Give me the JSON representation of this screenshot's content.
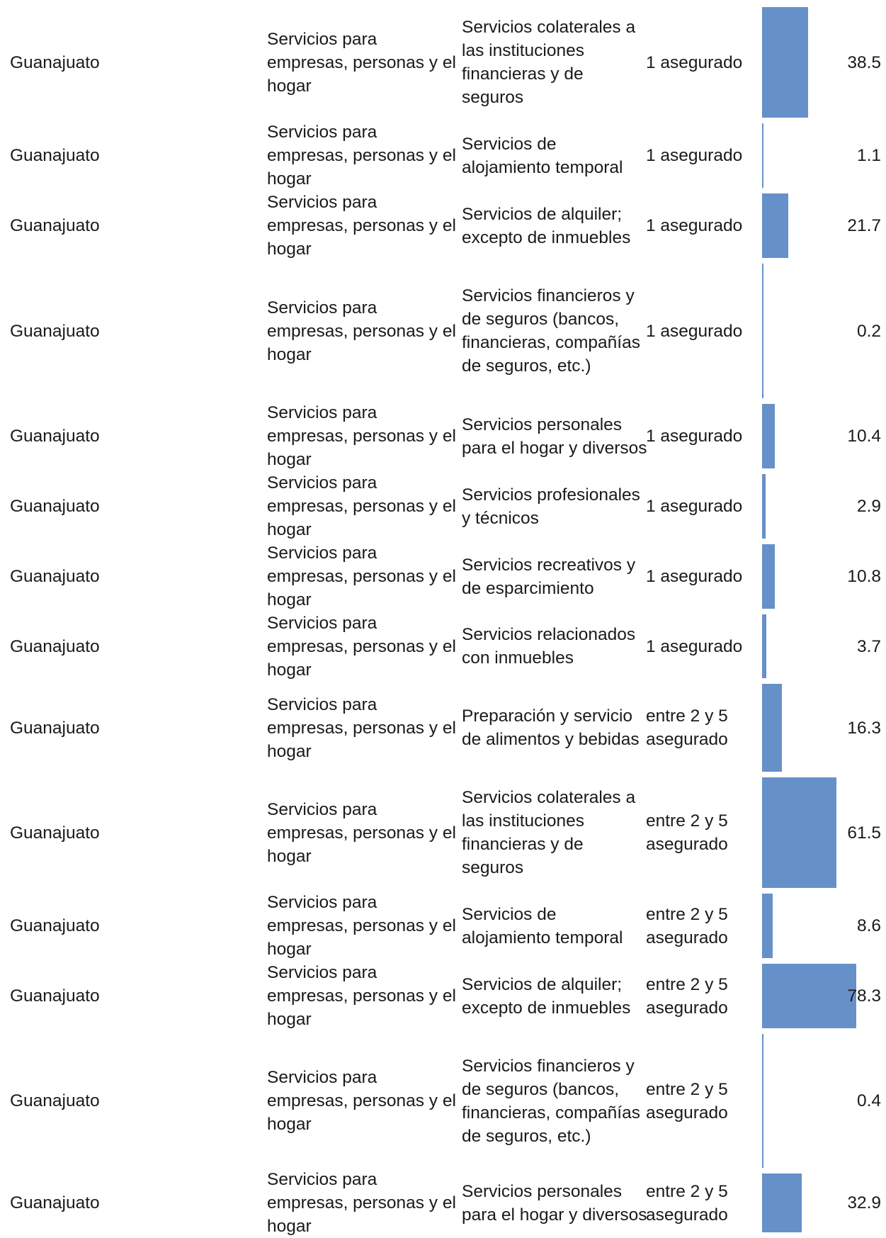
{
  "chart_data": {
    "type": "table",
    "columns": [],
    "bar_color": "#6690c8",
    "rows": [
      {
        "estado": "Guanajuato",
        "sector": "Servicios para empresas, personas y el hogar",
        "subsector": "Servicios colaterales a las instituciones financieras y de seguros",
        "tamano": "1 asegurado",
        "valor": 38.5,
        "valor_label": "38.5"
      },
      {
        "estado": "Guanajuato",
        "sector": "Servicios para empresas, personas y el hogar",
        "subsector": "Servicios de alojamiento temporal",
        "tamano": "1 asegurado",
        "valor": 1.1,
        "valor_label": "1.1"
      },
      {
        "estado": "Guanajuato",
        "sector": "Servicios para empresas, personas y el hogar",
        "subsector": "Servicios de alquiler; excepto de inmuebles",
        "tamano": "1 asegurado",
        "valor": 21.7,
        "valor_label": "21.7"
      },
      {
        "estado": "Guanajuato",
        "sector": "Servicios para empresas, personas y el hogar",
        "subsector": "Servicios financieros y de seguros (bancos, financieras, compañías de seguros, etc.)",
        "tamano": "1 asegurado",
        "valor": 0.2,
        "valor_label": "0.2"
      },
      {
        "estado": "Guanajuato",
        "sector": "Servicios para empresas, personas y el hogar",
        "subsector": "Servicios personales para el hogar y diversos",
        "tamano": "1 asegurado",
        "valor": 10.4,
        "valor_label": "10.4"
      },
      {
        "estado": "Guanajuato",
        "sector": "Servicios para empresas, personas y el hogar",
        "subsector": "Servicios profesionales y técnicos",
        "tamano": "1 asegurado",
        "valor": 2.9,
        "valor_label": "2.9"
      },
      {
        "estado": "Guanajuato",
        "sector": "Servicios para empresas, personas y el hogar",
        "subsector": "Servicios recreativos y de esparcimiento",
        "tamano": "1 asegurado",
        "valor": 10.8,
        "valor_label": "10.8"
      },
      {
        "estado": "Guanajuato",
        "sector": "Servicios para empresas, personas y el hogar",
        "subsector": "Servicios relacionados con inmuebles",
        "tamano": "1 asegurado",
        "valor": 3.7,
        "valor_label": "3.7"
      },
      {
        "estado": "Guanajuato",
        "sector": "Servicios para empresas, personas y el hogar",
        "subsector": "Preparación y servicio de alimentos y bebidas",
        "tamano": "entre 2 y 5 asegurado",
        "valor": 16.3,
        "valor_label": "16.3"
      },
      {
        "estado": "Guanajuato",
        "sector": "Servicios para empresas, personas y el hogar",
        "subsector": "Servicios colaterales a las instituciones financieras y de seguros",
        "tamano": "entre 2 y 5 asegurado",
        "valor": 61.5,
        "valor_label": "61.5"
      },
      {
        "estado": "Guanajuato",
        "sector": "Servicios para empresas, personas y el hogar",
        "subsector": "Servicios de alojamiento temporal",
        "tamano": "entre 2 y 5 asegurado",
        "valor": 8.6,
        "valor_label": "8.6"
      },
      {
        "estado": "Guanajuato",
        "sector": "Servicios para empresas, personas y el hogar",
        "subsector": "Servicios de alquiler; excepto de inmuebles",
        "tamano": "entre 2 y 5 asegurado",
        "valor": 78.3,
        "valor_label": "78.3"
      },
      {
        "estado": "Guanajuato",
        "sector": "Servicios para empresas, personas y el hogar",
        "subsector": "Servicios financieros y de seguros (bancos, financieras, compañías de seguros, etc.)",
        "tamano": "entre 2 y 5 asegurado",
        "valor": 0.4,
        "valor_label": "0.4"
      },
      {
        "estado": "Guanajuato",
        "sector": "Servicios para empresas, personas y el hogar",
        "subsector": "Servicios personales para el hogar y diversos",
        "tamano": "entre 2 y 5 asegurado",
        "valor": 32.9,
        "valor_label": "32.9"
      }
    ]
  }
}
